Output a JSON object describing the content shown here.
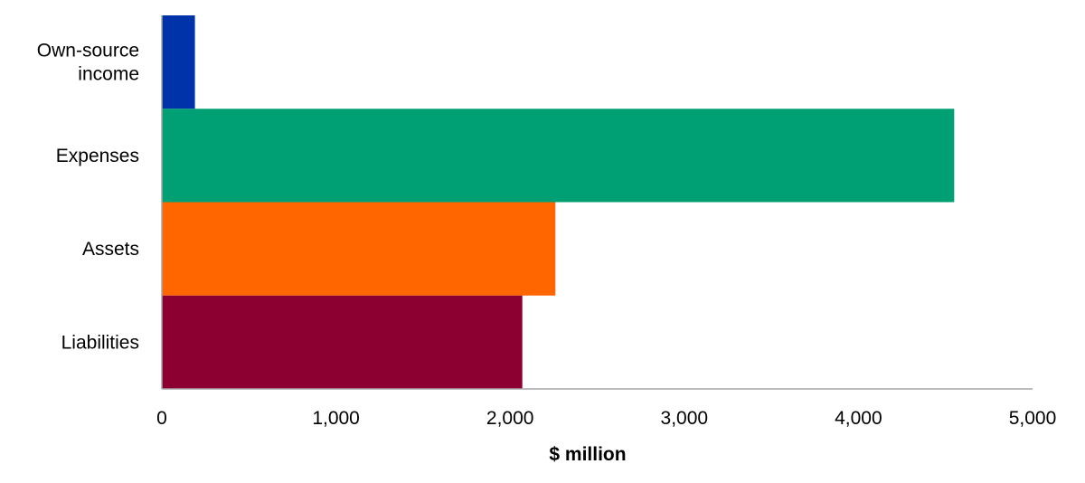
{
  "chart_data": {
    "type": "bar",
    "orientation": "horizontal",
    "categories": [
      [
        "Own-source",
        "income"
      ],
      [
        "Expenses"
      ],
      [
        "Assets"
      ],
      [
        "Liabilities"
      ]
    ],
    "values": [
      190,
      4550,
      2260,
      2070
    ],
    "colors": [
      "#0033aa",
      "#00a074",
      "#ff6600",
      "#8b0030"
    ],
    "xlabel": "$ million",
    "ylabel": "",
    "title": "",
    "xlim": [
      0,
      5000
    ],
    "xticks": [
      0,
      1000,
      2000,
      3000,
      4000,
      5000
    ],
    "xtick_labels": [
      "0",
      "1,000",
      "2,000",
      "3,000",
      "4,000",
      "5,000"
    ],
    "grid": false,
    "legend": "none"
  }
}
